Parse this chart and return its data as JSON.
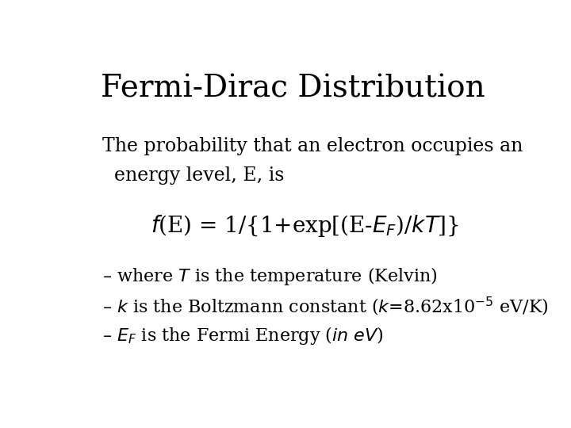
{
  "title": "Fermi-Dirac Distribution",
  "background_color": "#ffffff",
  "text_color": "#000000",
  "title_fontsize": 28,
  "body_fontsize": 17,
  "formula_fontsize": 20,
  "bullet_fontsize": 16,
  "para1_line1": "The probability that an electron occupies an",
  "para1_line2": "  energy level, E, is"
}
